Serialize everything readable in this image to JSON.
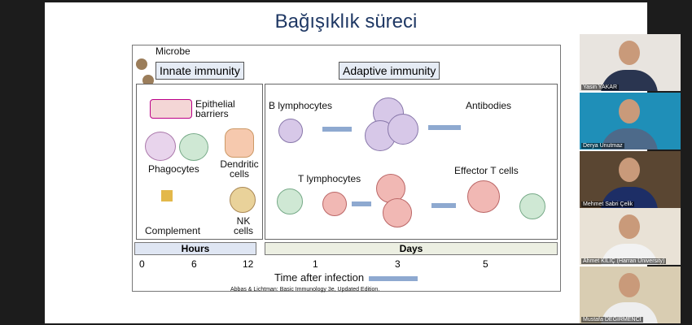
{
  "slide": {
    "title": "Bağışıklık süreci",
    "figure": {
      "microbe": "Microbe",
      "innate_header": "Innate immunity",
      "adaptive_header": "Adaptive immunity",
      "innate_items": [
        "Epithelial barriers",
        "Phagocytes",
        "Dendritic cells",
        "Complement",
        "NK cells"
      ],
      "adaptive_items": [
        "B lymphocytes",
        "Antibodies",
        "T lymphocytes",
        "Effector T cells"
      ],
      "hours_label": "Hours",
      "days_label": "Days",
      "ticks": [
        "0",
        "6",
        "12",
        "1",
        "3",
        "5"
      ],
      "axis_label": "Time after infection",
      "citation": "Abbas & Lichtman: Basic Immunology 3e, Updated Edition."
    }
  },
  "participants": [
    {
      "name": "Yasin YAKAR",
      "bg": "#e8e4df",
      "shirt": "#2a3550"
    },
    {
      "name": "Derya Unutmaz",
      "bg": "#1f8fb8",
      "shirt": "#4d6a8a"
    },
    {
      "name": "Mehmet Sabri Çelik",
      "bg": "#5a4632",
      "shirt": "#1d2e66"
    },
    {
      "name": "Ahmet KILIÇ (Harran University)",
      "bg": "#e9e2d6",
      "shirt": "#f2f2f2"
    },
    {
      "name": "Mustafa DEĞİRMENCİ",
      "bg": "#d9cdb2",
      "shirt": "#eeeeee"
    }
  ]
}
